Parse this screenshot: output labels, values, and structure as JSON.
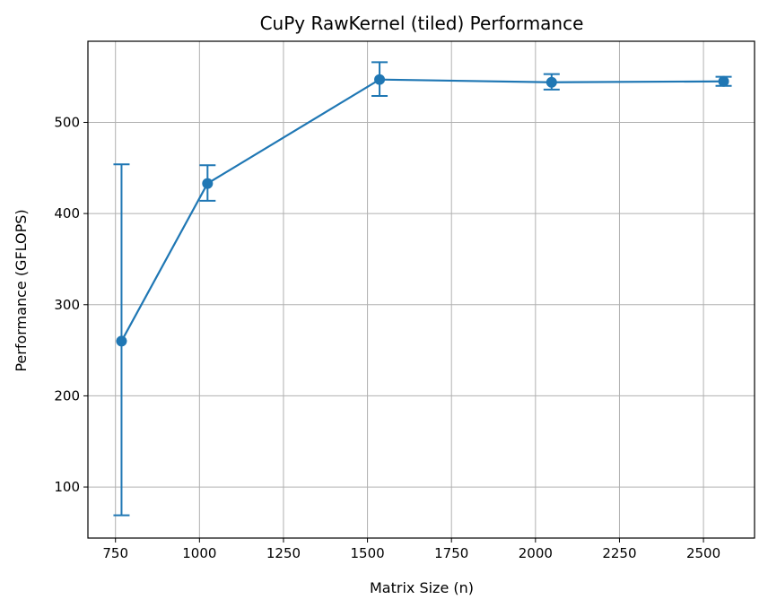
{
  "chart_data": {
    "type": "line",
    "title": "CuPy RawKernel (tiled) Performance",
    "xlabel": "Matrix Size (n)",
    "ylabel": "Performance (GFLOPS)",
    "xlim": [
      668,
      2652
    ],
    "ylim": [
      44,
      589
    ],
    "xticks": [
      750,
      1000,
      1250,
      1500,
      1750,
      2000,
      2250,
      2500
    ],
    "yticks": [
      100,
      200,
      300,
      400,
      500
    ],
    "grid": true,
    "colors": {
      "series": "#1f77b4"
    },
    "series": [
      {
        "x": [
          768,
          1024,
          1536,
          2048,
          2560
        ],
        "y": [
          260,
          433,
          547,
          544,
          545
        ],
        "error": [
          [
            69,
            454
          ],
          [
            414,
            453
          ],
          [
            529,
            566
          ],
          [
            536,
            553
          ],
          [
            540,
            550
          ]
        ]
      }
    ]
  }
}
